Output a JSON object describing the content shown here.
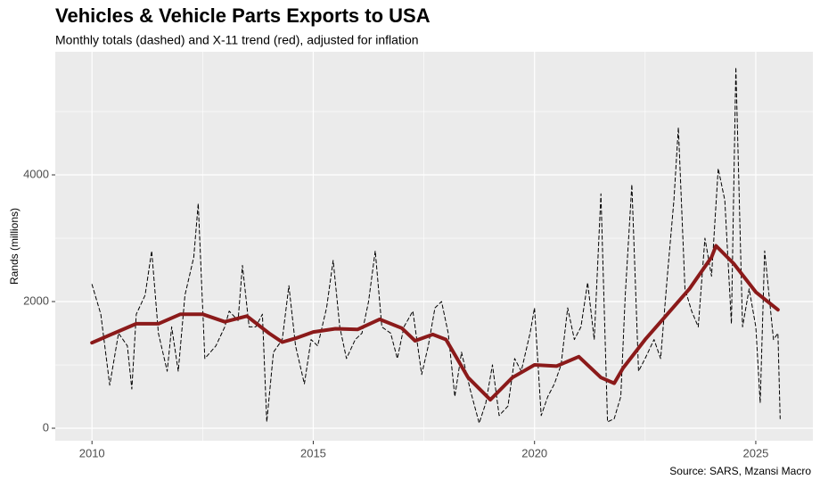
{
  "chart_data": {
    "type": "line",
    "title": "Vehicles & Vehicle Parts Exports to USA",
    "subtitle": "Monthly totals (dashed) and X-11 trend (red), adjusted for inflation",
    "ylabel": "Rands (millions)",
    "caption": "Source: SARS, Mzansi Macro",
    "xlim": [
      2009.17,
      2026.29
    ],
    "xticks": [
      2010,
      2015,
      2020,
      2025
    ],
    "x_minor_ticks": [
      2012.5,
      2017.5,
      2022.5
    ],
    "ylim": [
      -197,
      5944
    ],
    "yticks": [
      0,
      2000,
      4000
    ],
    "y_minor_ticks": [
      1000,
      3000,
      5000
    ],
    "grid": true,
    "series": [
      {
        "color": "#000000",
        "style": "dashed",
        "x": [
          2010.0,
          2010.2,
          2010.4,
          2010.6,
          2010.8,
          2010.9,
          2011.0,
          2011.2,
          2011.35,
          2011.5,
          2011.7,
          2011.8,
          2011.95,
          2012.1,
          2012.3,
          2012.4,
          2012.55,
          2012.8,
          2013.0,
          2013.1,
          2013.3,
          2013.4,
          2013.55,
          2013.7,
          2013.85,
          2013.95,
          2014.1,
          2014.3,
          2014.45,
          2014.6,
          2014.8,
          2014.95,
          2015.1,
          2015.3,
          2015.45,
          2015.6,
          2015.75,
          2015.95,
          2016.1,
          2016.25,
          2016.4,
          2016.55,
          2016.75,
          2016.9,
          2017.05,
          2017.25,
          2017.45,
          2017.6,
          2017.75,
          2017.9,
          2018.05,
          2018.2,
          2018.35,
          2018.55,
          2018.75,
          2018.9,
          2019.05,
          2019.2,
          2019.4,
          2019.55,
          2019.7,
          2019.9,
          2020.0,
          2020.15,
          2020.3,
          2020.45,
          2020.6,
          2020.75,
          2020.9,
          2021.05,
          2021.2,
          2021.35,
          2021.5,
          2021.65,
          2021.8,
          2021.95,
          2022.05,
          2022.2,
          2022.35,
          2022.5,
          2022.7,
          2022.85,
          2023.0,
          2023.15,
          2023.25,
          2023.4,
          2023.55,
          2023.7,
          2023.85,
          2024.0,
          2024.15,
          2024.3,
          2024.45,
          2024.55,
          2024.7,
          2024.85,
          2025.0,
          2025.1,
          2025.2,
          2025.4,
          2025.5,
          2025.55
        ],
        "values": [
          2270,
          1800,
          680,
          1500,
          1300,
          620,
          1800,
          2100,
          2800,
          1500,
          900,
          1600,
          900,
          2100,
          2700,
          3550,
          1100,
          1300,
          1600,
          1850,
          1700,
          2570,
          1600,
          1600,
          1800,
          100,
          1200,
          1400,
          2250,
          1300,
          700,
          1400,
          1300,
          1900,
          2650,
          1600,
          1100,
          1400,
          1500,
          2000,
          2800,
          1600,
          1500,
          1100,
          1600,
          1850,
          850,
          1300,
          1900,
          2000,
          1500,
          500,
          1200,
          600,
          80,
          400,
          1000,
          200,
          350,
          1100,
          900,
          1500,
          1900,
          200,
          500,
          700,
          1000,
          1900,
          1400,
          1600,
          2300,
          1400,
          3700,
          100,
          150,
          500,
          2100,
          3850,
          900,
          1100,
          1400,
          1100,
          2400,
          3600,
          4750,
          2200,
          1850,
          1600,
          3000,
          2400,
          4100,
          3600,
          1650,
          5700,
          1600,
          2200,
          1600,
          400,
          2800,
          1400,
          1500,
          150
        ]
      },
      {
        "color": "#8b1a1a",
        "style": "solid",
        "x": [
          2010,
          2010.5,
          2011,
          2011.5,
          2012,
          2012.5,
          2013,
          2013.5,
          2014,
          2014.3,
          2014.6,
          2015,
          2015.5,
          2016,
          2016.5,
          2017,
          2017.3,
          2017.7,
          2018,
          2018.5,
          2019,
          2019.5,
          2020,
          2020.5,
          2021,
          2021.5,
          2021.8,
          2022,
          2022.5,
          2023,
          2023.5,
          2024,
          2024.1,
          2024.5,
          2025,
          2025.5
        ],
        "values": [
          1350,
          1500,
          1650,
          1650,
          1800,
          1800,
          1680,
          1770,
          1500,
          1360,
          1420,
          1520,
          1570,
          1560,
          1720,
          1580,
          1380,
          1480,
          1400,
          800,
          450,
          800,
          1000,
          980,
          1130,
          800,
          710,
          950,
          1400,
          1800,
          2200,
          2700,
          2880,
          2600,
          2150,
          1870
        ]
      }
    ]
  }
}
